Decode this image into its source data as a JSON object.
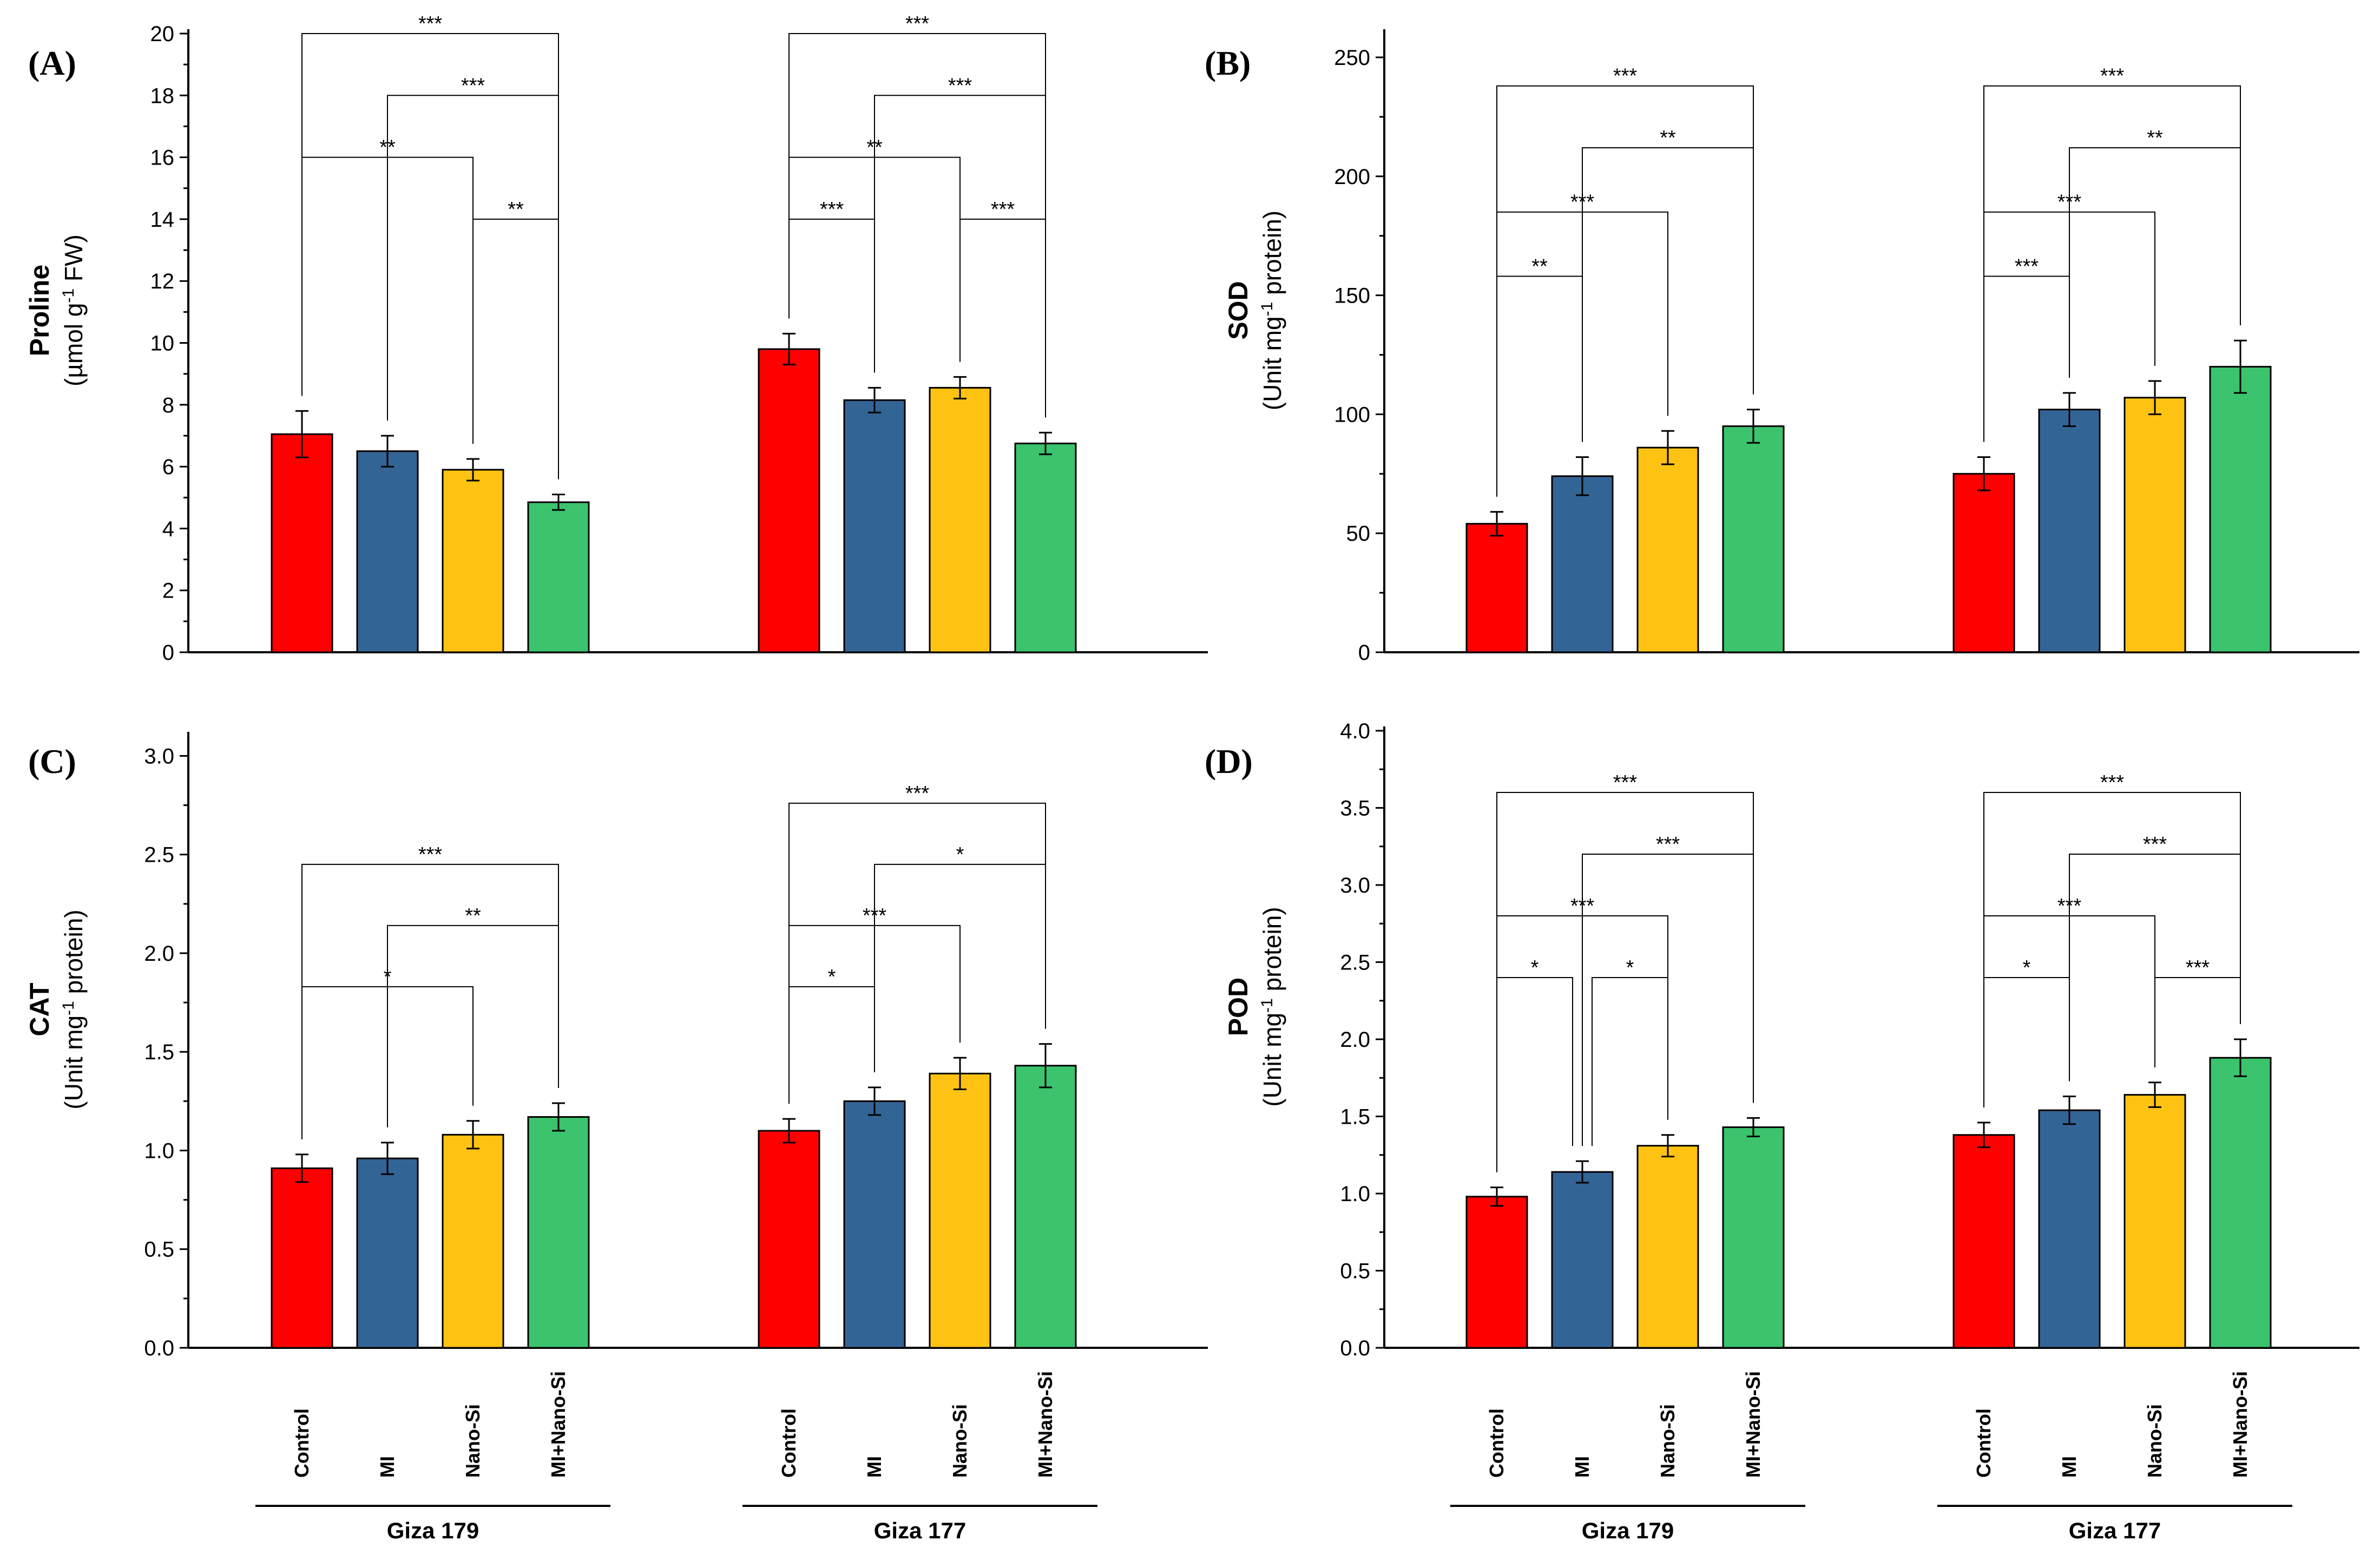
{
  "colors": {
    "Control": "#fe0000",
    "MI": "#336496",
    "Nano-Si": "#fec213",
    "MI+Nano-Si": "#3bc36e"
  },
  "chart_data": [
    {
      "type": "bar",
      "label": "(A)",
      "ylabel_main": "Proline",
      "ylabel_pre": "(µmol g",
      "ylabel_sup": "-1",
      "ylabel_post": " FW)",
      "ylim": [
        0,
        20
      ],
      "yticks": [
        "0",
        "2",
        "4",
        "6",
        "8",
        "10",
        "12",
        "14",
        "16",
        "18",
        "20"
      ],
      "categories": [
        "Control",
        "MI",
        "Nano-Si",
        "MI+Nano-Si"
      ],
      "groups": [
        {
          "name": "Giza 179",
          "values": [
            7.05,
            6.5,
            5.9,
            4.85
          ],
          "errors": [
            0.75,
            0.5,
            0.35,
            0.25
          ],
          "brackets": [
            {
              "from": 0,
              "to": 3,
              "level": 20.0,
              "stars": "***"
            },
            {
              "from": 1,
              "to": 3,
              "level": 18.0,
              "stars": "***"
            },
            {
              "from": 0,
              "to": 2,
              "level": 16.0,
              "stars": "**"
            },
            {
              "from": 2,
              "to": 3,
              "level": 14.0,
              "stars": "**"
            }
          ]
        },
        {
          "name": "Giza 177",
          "values": [
            9.8,
            8.15,
            8.55,
            6.75
          ],
          "errors": [
            0.5,
            0.4,
            0.35,
            0.35
          ],
          "brackets": [
            {
              "from": 0,
              "to": 3,
              "level": 20.0,
              "stars": "***"
            },
            {
              "from": 1,
              "to": 3,
              "level": 18.0,
              "stars": "***"
            },
            {
              "from": 0,
              "to": 2,
              "level": 16.0,
              "stars": "**"
            },
            {
              "from": 0,
              "to": 1,
              "level": 14.0,
              "stars": "***"
            },
            {
              "from": 2,
              "to": 3,
              "level": 14.0,
              "stars": "***"
            }
          ]
        }
      ]
    },
    {
      "type": "bar",
      "label": "(B)",
      "ylabel_main": "SOD",
      "ylabel_pre": "(Unit mg",
      "ylabel_sup": "-1",
      "ylabel_post": " protein)",
      "ylim": [
        0,
        260
      ],
      "yticks": [
        "0",
        "50",
        "100",
        "150",
        "200",
        "250"
      ],
      "categories": [
        "Control",
        "MI",
        "Nano-Si",
        "MI+Nano-Si"
      ],
      "groups": [
        {
          "name": "Giza 179",
          "values": [
            54,
            74,
            86,
            95
          ],
          "errors": [
            5,
            8,
            7,
            7
          ],
          "brackets": [
            {
              "from": 0,
              "to": 3,
              "level": 238,
              "stars": "***"
            },
            {
              "from": 1,
              "to": 3,
              "level": 212,
              "stars": "**"
            },
            {
              "from": 0,
              "to": 2,
              "level": 185,
              "stars": "***"
            },
            {
              "from": 0,
              "to": 1,
              "level": 158,
              "stars": "**"
            }
          ]
        },
        {
          "name": "Giza 177",
          "values": [
            75,
            102,
            107,
            120
          ],
          "errors": [
            7,
            7,
            7,
            11
          ],
          "brackets": [
            {
              "from": 0,
              "to": 3,
              "level": 238,
              "stars": "***"
            },
            {
              "from": 1,
              "to": 3,
              "level": 212,
              "stars": "**"
            },
            {
              "from": 0,
              "to": 2,
              "level": 185,
              "stars": "***"
            },
            {
              "from": 0,
              "to": 1,
              "level": 158,
              "stars": "***"
            }
          ]
        }
      ]
    },
    {
      "type": "bar",
      "label": "(C)",
      "ylabel_main": "CAT",
      "ylabel_pre": "(Unit mg",
      "ylabel_sup": "-1",
      "ylabel_post": " protein)",
      "ylim": [
        0,
        3.1
      ],
      "yticks": [
        "0.0",
        "0.5",
        "1.0",
        "1.5",
        "2.0",
        "2.5",
        "3.0"
      ],
      "categories": [
        "Control",
        "MI",
        "Nano-Si",
        "MI+Nano-Si"
      ],
      "groups": [
        {
          "name": "Giza 179",
          "values": [
            0.91,
            0.96,
            1.08,
            1.17
          ],
          "errors": [
            0.07,
            0.08,
            0.07,
            0.07
          ],
          "brackets": [
            {
              "from": 0,
              "to": 3,
              "level": 2.45,
              "stars": "***"
            },
            {
              "from": 1,
              "to": 3,
              "level": 2.14,
              "stars": "**"
            },
            {
              "from": 0,
              "to": 2,
              "level": 1.83,
              "stars": "*"
            }
          ]
        },
        {
          "name": "Giza 177",
          "values": [
            1.1,
            1.25,
            1.39,
            1.43
          ],
          "errors": [
            0.06,
            0.07,
            0.08,
            0.11
          ],
          "brackets": [
            {
              "from": 0,
              "to": 3,
              "level": 2.76,
              "stars": "***"
            },
            {
              "from": 1,
              "to": 3,
              "level": 2.45,
              "stars": "*"
            },
            {
              "from": 0,
              "to": 2,
              "level": 2.14,
              "stars": "***"
            },
            {
              "from": 0,
              "to": 1,
              "level": 1.83,
              "stars": "*"
            }
          ]
        }
      ]
    },
    {
      "type": "bar",
      "label": "(D)",
      "ylabel_main": "POD",
      "ylabel_pre": "(Unit mg",
      "ylabel_sup": "-1",
      "ylabel_post": " protein)",
      "ylim": [
        0,
        4.0
      ],
      "yticks": [
        "0.0",
        "0.5",
        "1.0",
        "1.5",
        "2.0",
        "2.5",
        "3.0",
        "3.5",
        "4.0"
      ],
      "categories": [
        "Control",
        "MI",
        "Nano-Si",
        "MI+Nano-Si"
      ],
      "groups": [
        {
          "name": "Giza 179",
          "values": [
            0.98,
            1.14,
            1.31,
            1.43
          ],
          "errors": [
            0.06,
            0.07,
            0.07,
            0.06
          ],
          "brackets": [
            {
              "from": 0,
              "to": 3,
              "level": 3.6,
              "stars": "***"
            },
            {
              "from": 1,
              "to": 3,
              "level": 3.2,
              "stars": "***"
            },
            {
              "from": 0,
              "to": 2,
              "level": 2.8,
              "stars": "***"
            },
            {
              "from": 0,
              "to": 1,
              "level": 2.4,
              "stars": "*"
            },
            {
              "from": 1,
              "to": 2,
              "level": 2.4,
              "stars": "*"
            }
          ]
        },
        {
          "name": "Giza 177",
          "values": [
            1.38,
            1.54,
            1.64,
            1.88
          ],
          "errors": [
            0.08,
            0.09,
            0.08,
            0.12
          ],
          "brackets": [
            {
              "from": 0,
              "to": 3,
              "level": 3.6,
              "stars": "***"
            },
            {
              "from": 1,
              "to": 3,
              "level": 3.2,
              "stars": "***"
            },
            {
              "from": 0,
              "to": 2,
              "level": 2.8,
              "stars": "***"
            },
            {
              "from": 0,
              "to": 1,
              "level": 2.4,
              "stars": "*"
            },
            {
              "from": 2,
              "to": 3,
              "level": 2.4,
              "stars": "***"
            }
          ]
        }
      ]
    }
  ]
}
